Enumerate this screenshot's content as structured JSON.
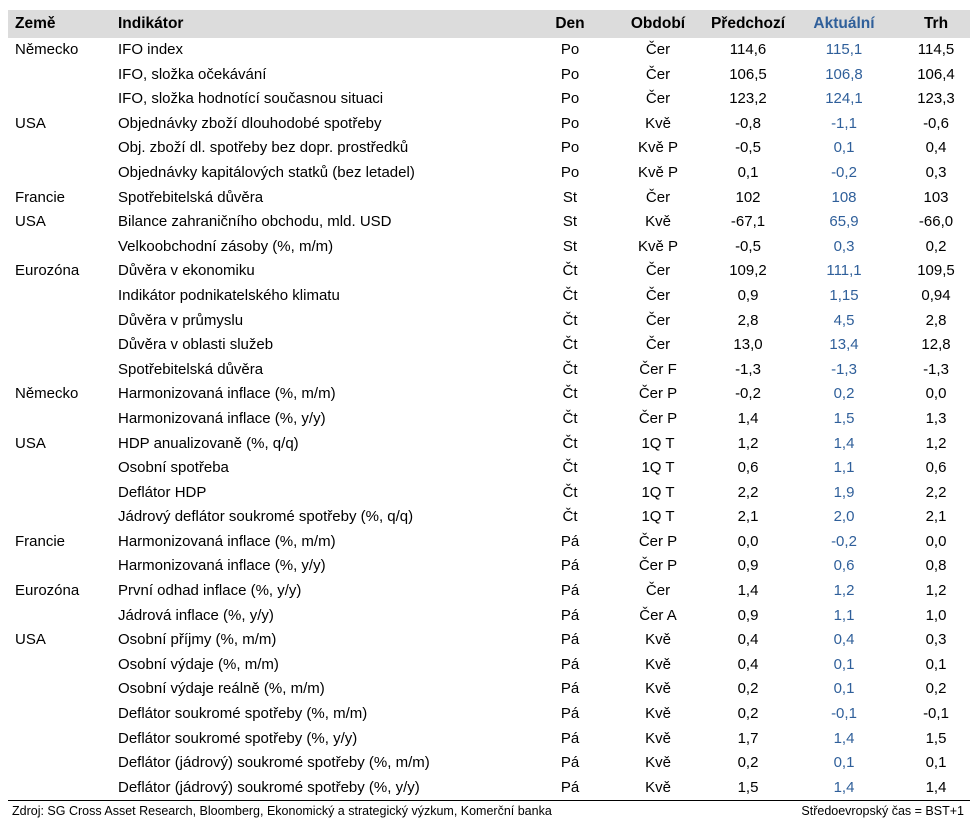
{
  "header": {
    "country": "Země",
    "indicator": "Indikátor",
    "day": "Den",
    "period": "Období",
    "previous": "Předchozí",
    "actual": "Aktuální",
    "market": "Trh"
  },
  "rows": [
    {
      "country": "Německo",
      "indicator": "IFO index",
      "day": "Po",
      "period": "Čer",
      "previous": "114,6",
      "actual": "115,1",
      "market": "114,5"
    },
    {
      "country": "",
      "indicator": "IFO, složka očekávání",
      "day": "Po",
      "period": "Čer",
      "previous": "106,5",
      "actual": "106,8",
      "market": "106,4"
    },
    {
      "country": "",
      "indicator": "IFO, složka hodnotící současnou situaci",
      "day": "Po",
      "period": "Čer",
      "previous": "123,2",
      "actual": "124,1",
      "market": "123,3"
    },
    {
      "country": "USA",
      "indicator": "Objednávky zboží dlouhodobé spotřeby",
      "day": "Po",
      "period": "Kvě",
      "previous": "-0,8",
      "actual": "-1,1",
      "market": "-0,6"
    },
    {
      "country": "",
      "indicator": "Obj. zboží dl. spotřeby bez dopr. prostředků",
      "day": "Po",
      "period": "Kvě P",
      "previous": "-0,5",
      "actual": "0,1",
      "market": "0,4"
    },
    {
      "country": "",
      "indicator": "Objednávky kapitálových statků (bez letadel)",
      "day": "Po",
      "period": "Kvě P",
      "previous": "0,1",
      "actual": "-0,2",
      "market": "0,3"
    },
    {
      "country": "Francie",
      "indicator": "Spotřebitelská důvěra",
      "day": "St",
      "period": "Čer",
      "previous": "102",
      "actual": "108",
      "market": "103"
    },
    {
      "country": "USA",
      "indicator": "Bilance zahraničního obchodu, mld. USD",
      "day": "St",
      "period": "Kvě",
      "previous": "-67,1",
      "actual": "65,9",
      "market": "-66,0"
    },
    {
      "country": "",
      "indicator": "Velkoobchodní zásoby (%, m/m)",
      "day": "St",
      "period": "Kvě P",
      "previous": "-0,5",
      "actual": "0,3",
      "market": "0,2"
    },
    {
      "country": "Eurozóna",
      "indicator": "Důvěra v ekonomiku",
      "day": "Čt",
      "period": "Čer",
      "previous": "109,2",
      "actual": "111,1",
      "market": "109,5"
    },
    {
      "country": "",
      "indicator": "Indikátor podnikatelského klimatu",
      "day": "Čt",
      "period": "Čer",
      "previous": "0,9",
      "actual": "1,15",
      "market": "0,94"
    },
    {
      "country": "",
      "indicator": "Důvěra v průmyslu",
      "day": "Čt",
      "period": "Čer",
      "previous": "2,8",
      "actual": "4,5",
      "market": "2,8"
    },
    {
      "country": "",
      "indicator": "Důvěra v oblasti služeb",
      "day": "Čt",
      "period": "Čer",
      "previous": "13,0",
      "actual": "13,4",
      "market": "12,8"
    },
    {
      "country": "",
      "indicator": "Spotřebitelská důvěra",
      "day": "Čt",
      "period": "Čer F",
      "previous": "-1,3",
      "actual": "-1,3",
      "market": "-1,3"
    },
    {
      "country": "Německo",
      "indicator": "Harmonizovaná inflace (%, m/m)",
      "day": "Čt",
      "period": "Čer P",
      "previous": "-0,2",
      "actual": "0,2",
      "market": "0,0"
    },
    {
      "country": "",
      "indicator": "Harmonizovaná inflace (%, y/y)",
      "day": "Čt",
      "period": "Čer P",
      "previous": "1,4",
      "actual": "1,5",
      "market": "1,3"
    },
    {
      "country": "USA",
      "indicator": "HDP anualizovaně (%, q/q)",
      "day": "Čt",
      "period": "1Q T",
      "previous": "1,2",
      "actual": "1,4",
      "market": "1,2"
    },
    {
      "country": "",
      "indicator": "Osobní spotřeba",
      "day": "Čt",
      "period": "1Q T",
      "previous": "0,6",
      "actual": "1,1",
      "market": "0,6"
    },
    {
      "country": "",
      "indicator": "Deflátor HDP",
      "day": "Čt",
      "period": "1Q T",
      "previous": "2,2",
      "actual": "1,9",
      "market": "2,2"
    },
    {
      "country": "",
      "indicator": "Jádrový deflátor soukromé spotřeby (%, q/q)",
      "day": "Čt",
      "period": "1Q T",
      "previous": "2,1",
      "actual": "2,0",
      "market": "2,1"
    },
    {
      "country": "Francie",
      "indicator": "Harmonizovaná inflace (%, m/m)",
      "day": "Pá",
      "period": "Čer P",
      "previous": "0,0",
      "actual": "-0,2",
      "market": "0,0"
    },
    {
      "country": "",
      "indicator": "Harmonizovaná inflace (%, y/y)",
      "day": "Pá",
      "period": "Čer P",
      "previous": "0,9",
      "actual": "0,6",
      "market": "0,8"
    },
    {
      "country": "Eurozóna",
      "indicator": "První odhad inflace (%, y/y)",
      "day": "Pá",
      "period": "Čer",
      "previous": "1,4",
      "actual": "1,2",
      "market": "1,2"
    },
    {
      "country": "",
      "indicator": "Jádrová inflace (%, y/y)",
      "day": "Pá",
      "period": "Čer A",
      "previous": "0,9",
      "actual": "1,1",
      "market": "1,0"
    },
    {
      "country": "USA",
      "indicator": "Osobní příjmy (%, m/m)",
      "day": "Pá",
      "period": "Kvě",
      "previous": "0,4",
      "actual": "0,4",
      "market": "0,3"
    },
    {
      "country": "",
      "indicator": "Osobní výdaje (%, m/m)",
      "day": "Pá",
      "period": "Kvě",
      "previous": "0,4",
      "actual": "0,1",
      "market": "0,1"
    },
    {
      "country": "",
      "indicator": "Osobní výdaje reálně (%, m/m)",
      "day": "Pá",
      "period": "Kvě",
      "previous": "0,2",
      "actual": "0,1",
      "market": "0,2"
    },
    {
      "country": "",
      "indicator": "Deflátor soukromé spotřeby (%, m/m)",
      "day": "Pá",
      "period": "Kvě",
      "previous": "0,2",
      "actual": "-0,1",
      "market": "-0,1"
    },
    {
      "country": "",
      "indicator": "Deflátor soukromé spotřeby (%, y/y)",
      "day": "Pá",
      "period": "Kvě",
      "previous": "1,7",
      "actual": "1,4",
      "market": "1,5"
    },
    {
      "country": "",
      "indicator": "Deflátor (jádrový) soukromé spotřeby (%, m/m)",
      "day": "Pá",
      "period": "Kvě",
      "previous": "0,2",
      "actual": "0,1",
      "market": "0,1"
    },
    {
      "country": "",
      "indicator": "Deflátor (jádrový) soukromé spotřeby (%, y/y)",
      "day": "Pá",
      "period": "Kvě",
      "previous": "1,5",
      "actual": "1,4",
      "market": "1,4"
    }
  ],
  "footer": {
    "source": "Zdroj: SG Cross Asset Research, Bloomberg, Ekonomický a strategický výzkum, Komerční banka",
    "timezone": "Středoevropský čas = BST+1"
  },
  "colors": {
    "header_bg": "#dcdcdc",
    "actual_blue": "#2f5f9a"
  }
}
